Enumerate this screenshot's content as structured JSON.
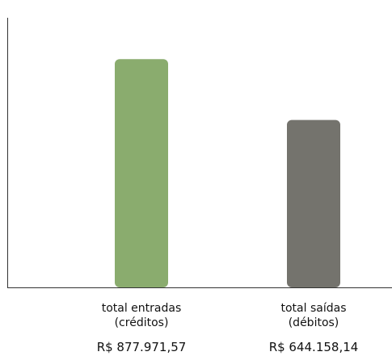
{
  "chart_data": {
    "type": "bar",
    "categories": [
      {
        "line1": "total entradas",
        "line2": "(créditos)"
      },
      {
        "line1": "total saídas",
        "line2": "(débitos)"
      }
    ],
    "values": [
      877971.57,
      644158.14
    ],
    "value_labels": [
      "R$ 877.971,57",
      "R$ 644.158,14"
    ],
    "colors": [
      "#8aac6e",
      "#74736d"
    ],
    "ylim": [
      0,
      1000000
    ],
    "grid": false,
    "legend": "none"
  }
}
